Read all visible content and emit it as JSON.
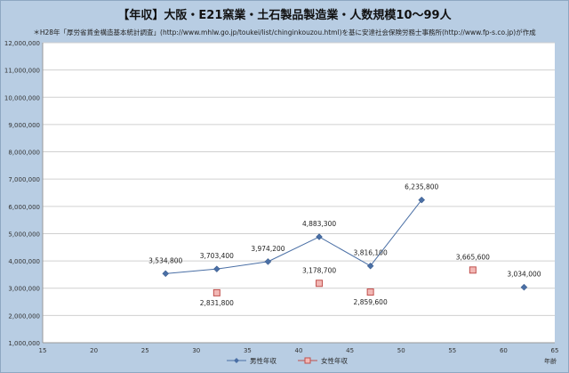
{
  "chart_data": {
    "type": "scatter",
    "title": "【年収】大阪・E21窯業・土石製品製造業・人数規模10～99人",
    "subtitle": "＊H28年「厚労省賃金構造基本統計調査」(http://www.mhlw.go.jp/toukei/list/chinginkouzou.html)を基に安達社会保険労務士事務所(http://www.fp-s.co.jp)が作成",
    "xlabel": "年齢",
    "ylabel": "",
    "xlim": [
      15,
      65
    ],
    "ylim": [
      1000000,
      12000000
    ],
    "x_ticks": [
      "15",
      "20",
      "25",
      "30",
      "35",
      "40",
      "45",
      "50",
      "55",
      "60",
      "65"
    ],
    "y_ticks": [
      "1,000,000",
      "2,000,000",
      "3,000,000",
      "4,000,000",
      "5,000,000",
      "6,000,000",
      "7,000,000",
      "8,000,000",
      "9,000,000",
      "10,000,000",
      "11,000,000",
      "12,000,000"
    ],
    "grid": true,
    "legend_position": "bottom",
    "series": [
      {
        "name": "男性年収",
        "color": "#4a6fa5",
        "marker": "diamond",
        "points": [
          {
            "x": 27,
            "y": 3534800,
            "label": "3,534,800",
            "connect": true
          },
          {
            "x": 32,
            "y": 3703400,
            "label": "3,703,400",
            "connect": true
          },
          {
            "x": 37,
            "y": 3974200,
            "label": "3,974,200",
            "connect": true
          },
          {
            "x": 42,
            "y": 4883300,
            "label": "4,883,300",
            "connect": true
          },
          {
            "x": 47,
            "y": 3816100,
            "label": "3,816,100",
            "connect": true
          },
          {
            "x": 52,
            "y": 6235800,
            "label": "6,235,800",
            "connect": true
          },
          {
            "x": 62,
            "y": 3034000,
            "label": "3,034,000",
            "connect": false
          }
        ]
      },
      {
        "name": "女性年収",
        "color": "#c0504d",
        "marker": "square",
        "points": [
          {
            "x": 32,
            "y": 2831800,
            "label": "2,831,800",
            "connect": false
          },
          {
            "x": 42,
            "y": 3178700,
            "label": "3,178,700",
            "connect": false
          },
          {
            "x": 47,
            "y": 2859600,
            "label": "2,859,600",
            "connect": true
          },
          {
            "x": 57,
            "y": 3665600,
            "label": "3,665,600",
            "connect": false
          }
        ]
      }
    ]
  }
}
